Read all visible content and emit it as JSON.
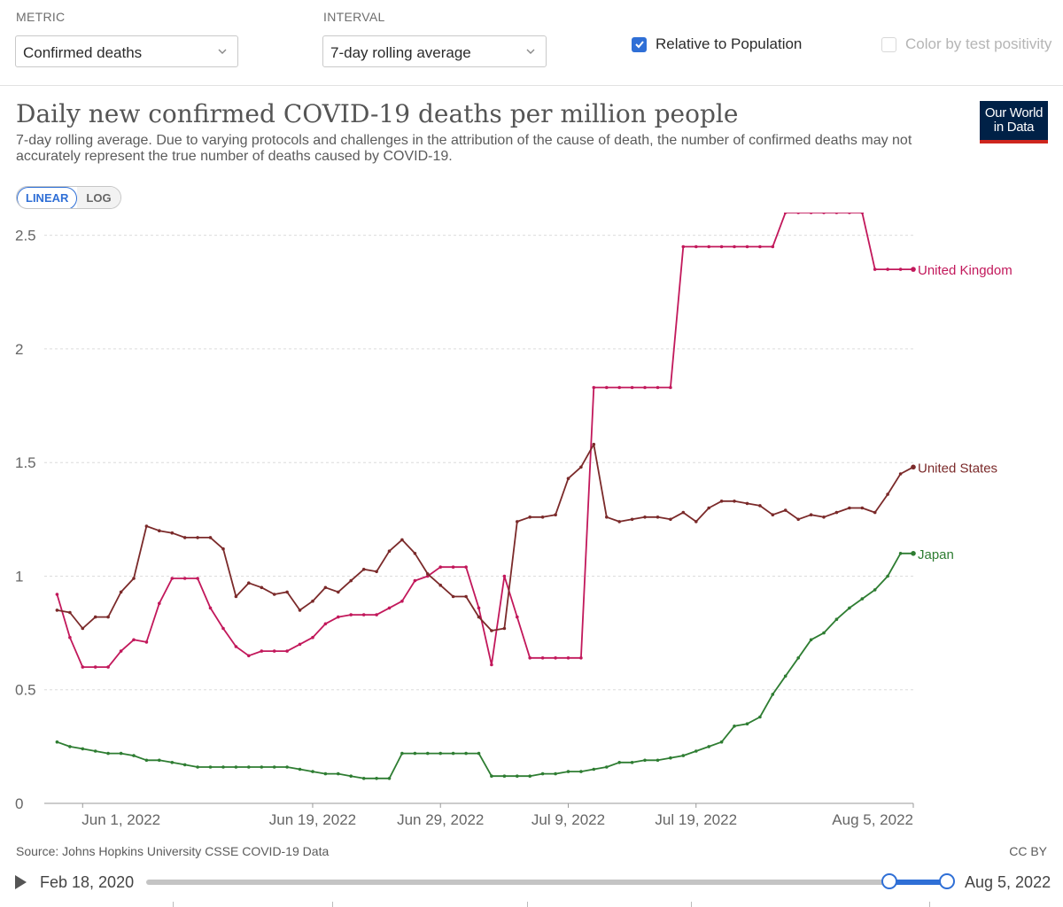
{
  "controls": {
    "metric_label": "METRIC",
    "metric_value": "Confirmed deaths",
    "interval_label": "INTERVAL",
    "interval_value": "7-day rolling average",
    "relative_label": "Relative to Population",
    "relative_checked": true,
    "color_label": "Color by test positivity",
    "color_checked": false
  },
  "header": {
    "title": "Daily new confirmed COVID-19 deaths per million people",
    "subtitle": "7-day rolling average. Due to varying protocols and challenges in the attribution of the cause of death, the number of confirmed deaths may not accurately represent the true number of deaths caused by COVID-19.",
    "logo_line1": "Our World",
    "logo_line2": "in Data"
  },
  "scale_toggle": {
    "linear": "LINEAR",
    "log": "LOG",
    "active": "LINEAR"
  },
  "footer": {
    "source": "Source: Johns Hopkins University CSSE COVID-19 Data",
    "license": "CC BY"
  },
  "timeline": {
    "start": "Feb 18, 2020",
    "end": "Aug 5, 2022"
  },
  "colors": {
    "uk": "#c2185b",
    "us": "#7b2a2a",
    "japan": "#2e7d32",
    "accent": "#2f6fd6"
  },
  "chart_data": {
    "type": "line",
    "title": "Daily new confirmed COVID-19 deaths per million people",
    "x_start": "2022-05-29",
    "x_end": "2022-08-05",
    "x_ticks": [
      "Jun 1, 2022",
      "Jun 19, 2022",
      "Jun 29, 2022",
      "Jul 9, 2022",
      "Jul 19, 2022",
      "Aug 5, 2022"
    ],
    "x_tick_dates": [
      "2022-06-01",
      "2022-06-19",
      "2022-06-29",
      "2022-07-09",
      "2022-07-19",
      "2022-08-05"
    ],
    "ylim": [
      0,
      2.6
    ],
    "y_ticks": [
      0,
      0.5,
      1,
      1.5,
      2,
      2.5
    ],
    "y_tick_labels": [
      "0",
      "0.5",
      "1",
      "1.5",
      "2",
      "2.5"
    ],
    "grid": true,
    "series": [
      {
        "name": "United Kingdom",
        "color": "#c2185b",
        "values": [
          0.92,
          0.73,
          0.6,
          0.6,
          0.6,
          0.67,
          0.72,
          0.71,
          0.88,
          0.99,
          0.99,
          0.99,
          0.86,
          0.77,
          0.69,
          0.65,
          0.67,
          0.67,
          0.67,
          0.7,
          0.73,
          0.79,
          0.82,
          0.83,
          0.83,
          0.83,
          0.86,
          0.89,
          0.98,
          1.0,
          1.04,
          1.04,
          1.04,
          0.86,
          0.61,
          1.0,
          0.82,
          0.64,
          0.64,
          0.64,
          0.64,
          0.64,
          1.83,
          1.83,
          1.83,
          1.83,
          1.83,
          1.83,
          1.83,
          2.45,
          2.45,
          2.45,
          2.45,
          2.45,
          2.45,
          2.45,
          2.45,
          2.6,
          2.6,
          2.6,
          2.6,
          2.6,
          2.6,
          2.6,
          2.35,
          2.35,
          2.35,
          2.35
        ]
      },
      {
        "name": "United States",
        "color": "#7b2a2a",
        "values": [
          0.85,
          0.84,
          0.77,
          0.82,
          0.82,
          0.93,
          0.99,
          1.22,
          1.2,
          1.19,
          1.17,
          1.17,
          1.17,
          1.12,
          0.91,
          0.97,
          0.95,
          0.92,
          0.93,
          0.85,
          0.89,
          0.95,
          0.93,
          0.98,
          1.03,
          1.02,
          1.11,
          1.16,
          1.1,
          1.01,
          0.96,
          0.91,
          0.91,
          0.82,
          0.76,
          0.77,
          1.24,
          1.26,
          1.26,
          1.27,
          1.43,
          1.48,
          1.58,
          1.26,
          1.24,
          1.25,
          1.26,
          1.26,
          1.25,
          1.28,
          1.24,
          1.3,
          1.33,
          1.33,
          1.32,
          1.31,
          1.27,
          1.29,
          1.25,
          1.27,
          1.26,
          1.28,
          1.3,
          1.3,
          1.28,
          1.36,
          1.45,
          1.48
        ]
      },
      {
        "name": "Japan",
        "color": "#2e7d32",
        "values": [
          0.27,
          0.25,
          0.24,
          0.23,
          0.22,
          0.22,
          0.21,
          0.19,
          0.19,
          0.18,
          0.17,
          0.16,
          0.16,
          0.16,
          0.16,
          0.16,
          0.16,
          0.16,
          0.16,
          0.15,
          0.14,
          0.13,
          0.13,
          0.12,
          0.11,
          0.11,
          0.11,
          0.22,
          0.22,
          0.22,
          0.22,
          0.22,
          0.22,
          0.22,
          0.12,
          0.12,
          0.12,
          0.12,
          0.13,
          0.13,
          0.14,
          0.14,
          0.15,
          0.16,
          0.18,
          0.18,
          0.19,
          0.19,
          0.2,
          0.21,
          0.23,
          0.25,
          0.27,
          0.34,
          0.35,
          0.38,
          0.48,
          0.56,
          0.64,
          0.72,
          0.75,
          0.81,
          0.86,
          0.9,
          0.94,
          1.0,
          1.1,
          1.1
        ]
      }
    ]
  }
}
